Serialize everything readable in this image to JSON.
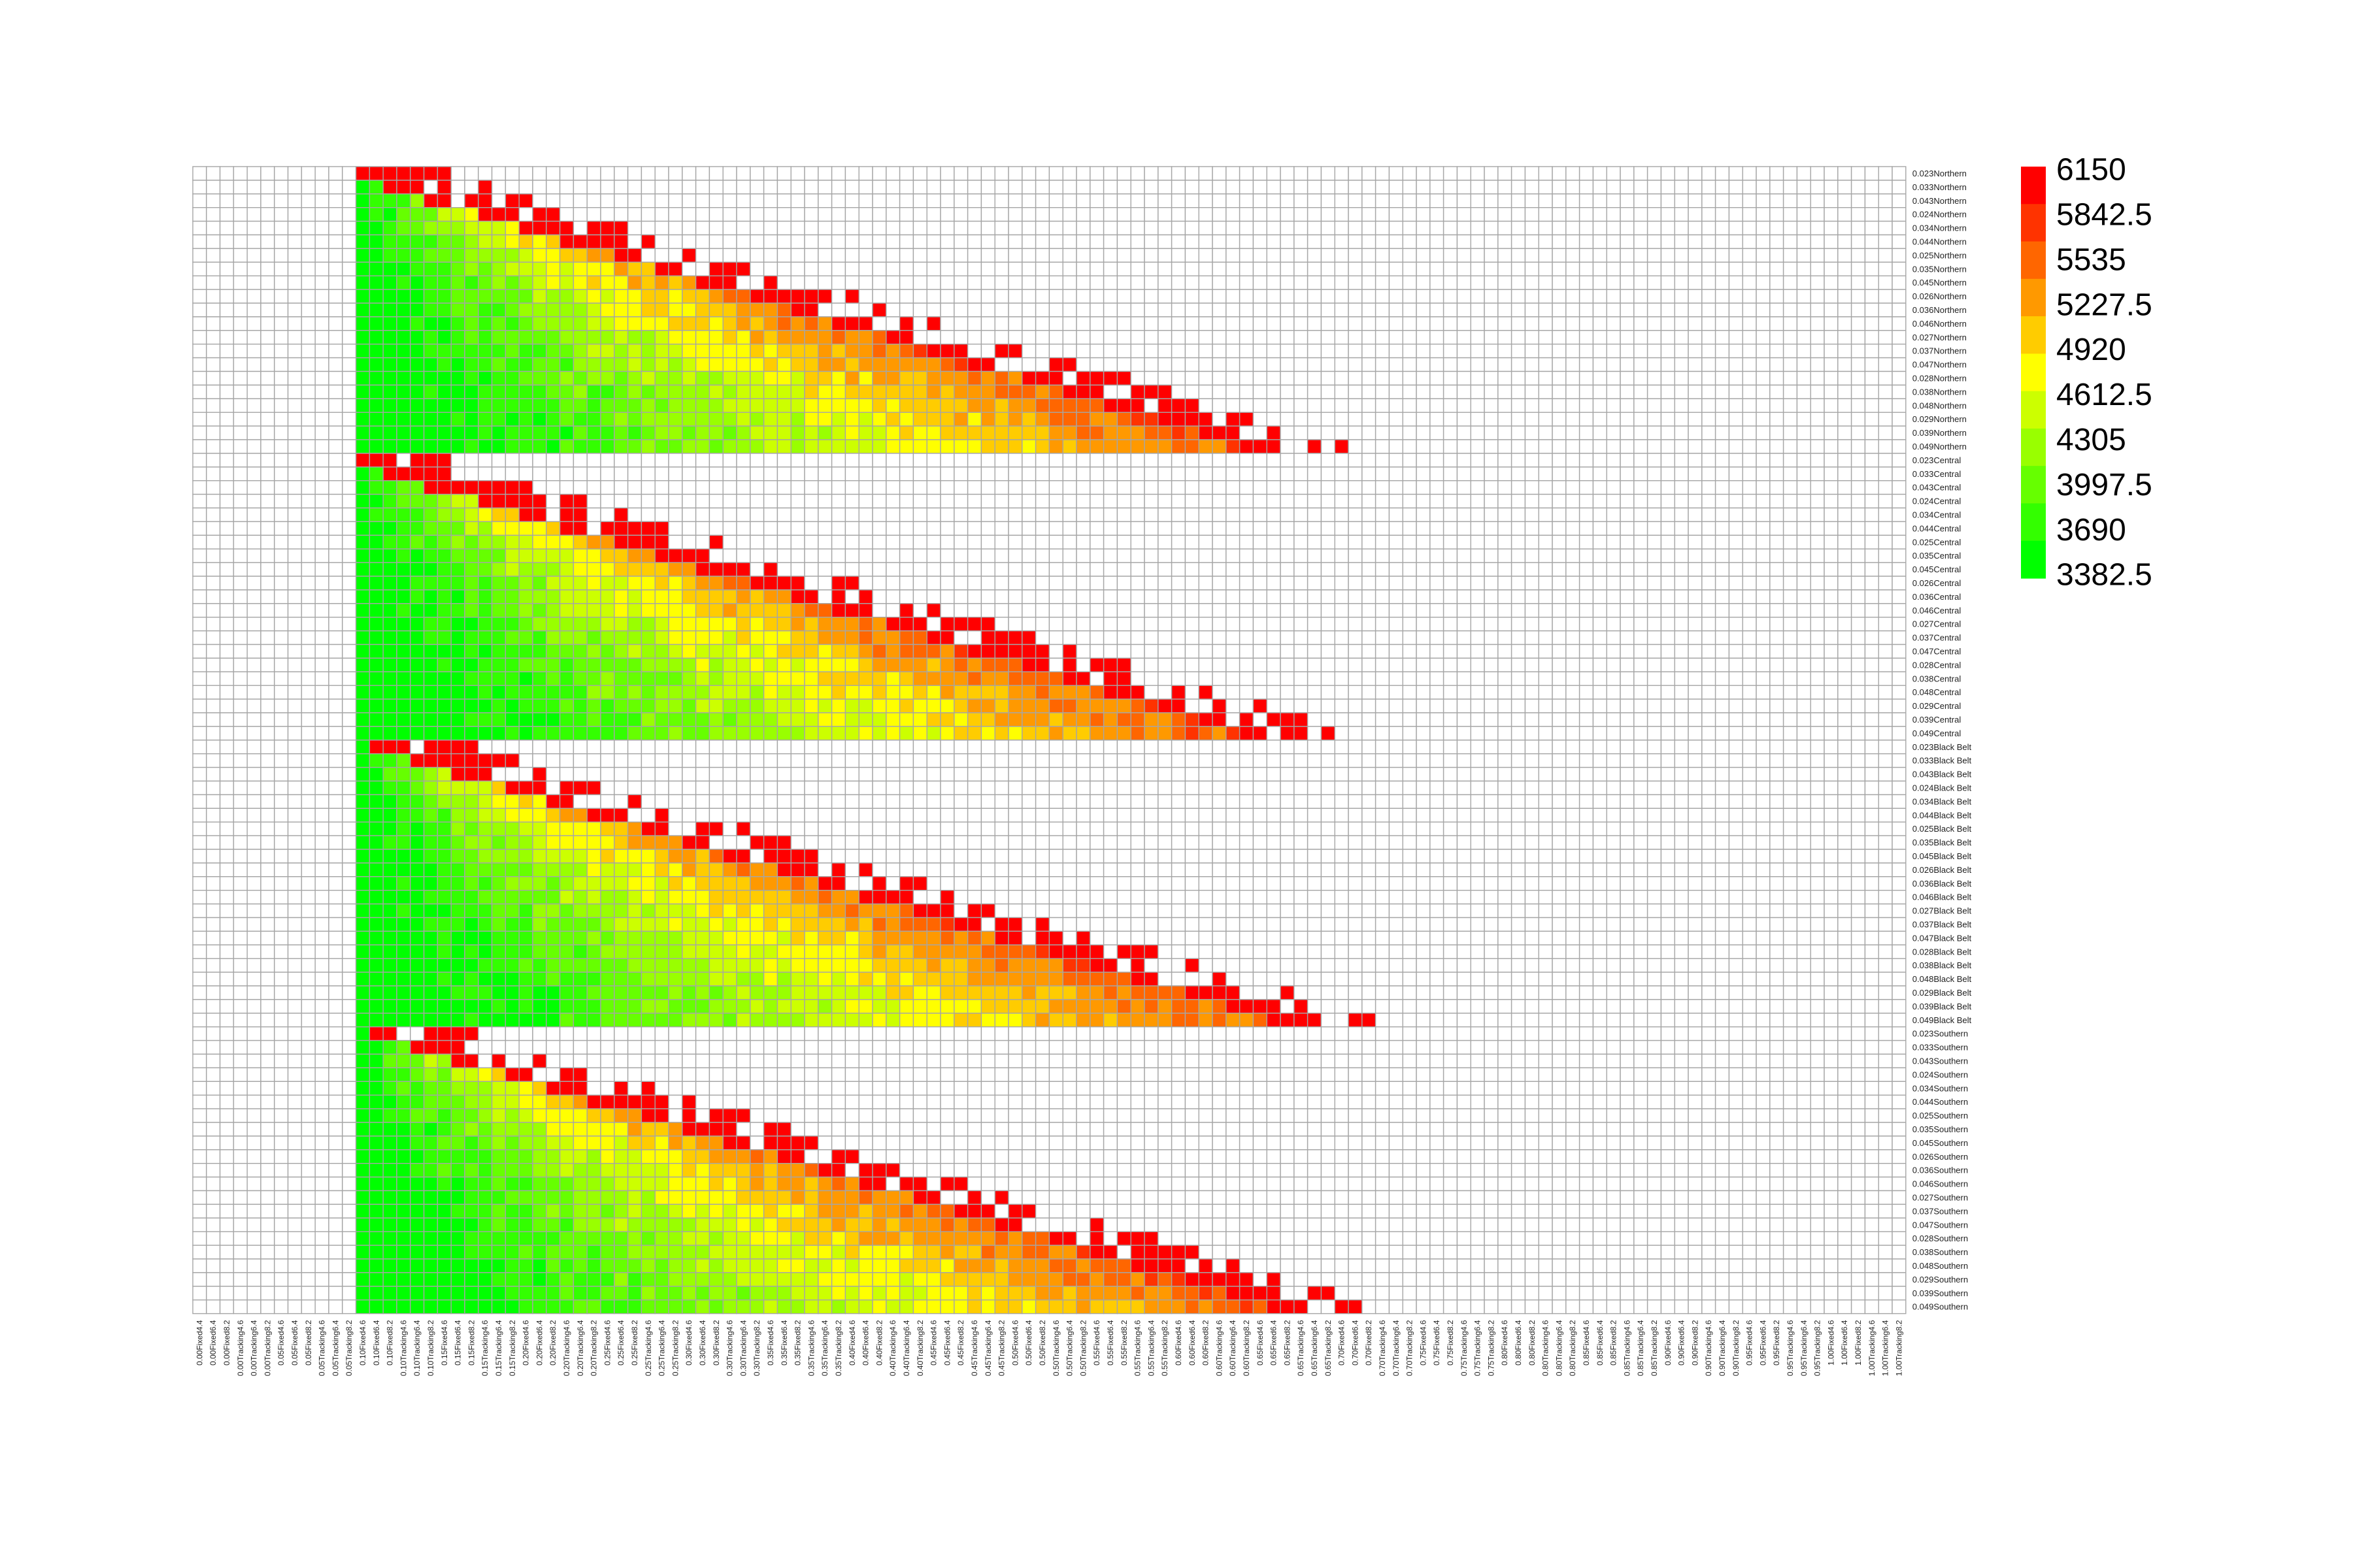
{
  "chart_data": {
    "type": "heatmap",
    "title": "",
    "xlabel": "",
    "ylabel": "",
    "regions": [
      "Northern",
      "Central",
      "Black Belt",
      "Southern"
    ],
    "row_codes": [
      "0.023",
      "0.033",
      "0.043",
      "0.024",
      "0.034",
      "0.044",
      "0.025",
      "0.035",
      "0.045",
      "0.026",
      "0.036",
      "0.046",
      "0.027",
      "0.037",
      "0.047",
      "0.028",
      "0.038",
      "0.048",
      "0.029",
      "0.039",
      "0.049"
    ],
    "rows": [
      "0.023Northern",
      "0.033Northern",
      "0.043Northern",
      "0.024Northern",
      "0.034Northern",
      "0.044Northern",
      "0.025Northern",
      "0.035Northern",
      "0.045Northern",
      "0.026Northern",
      "0.036Northern",
      "0.046Northern",
      "0.027Northern",
      "0.037Northern",
      "0.047Northern",
      "0.028Northern",
      "0.038Northern",
      "0.048Northern",
      "0.029Northern",
      "0.039Northern",
      "0.049Northern",
      "0.023Central",
      "0.033Central",
      "0.043Central",
      "0.024Central",
      "0.034Central",
      "0.044Central",
      "0.025Central",
      "0.035Central",
      "0.045Central",
      "0.026Central",
      "0.036Central",
      "0.046Central",
      "0.027Central",
      "0.037Central",
      "0.047Central",
      "0.028Central",
      "0.038Central",
      "0.048Central",
      "0.029Central",
      "0.039Central",
      "0.049Central",
      "0.023Black Belt",
      "0.033Black Belt",
      "0.043Black Belt",
      "0.024Black Belt",
      "0.034Black Belt",
      "0.044Black Belt",
      "0.025Black Belt",
      "0.035Black Belt",
      "0.045Black Belt",
      "0.026Black Belt",
      "0.036Black Belt",
      "0.046Black Belt",
      "0.027Black Belt",
      "0.037Black Belt",
      "0.047Black Belt",
      "0.028Black Belt",
      "0.038Black Belt",
      "0.048Black Belt",
      "0.029Black Belt",
      "0.039Black Belt",
      "0.049Black Belt",
      "0.023Southern",
      "0.033Southern",
      "0.043Southern",
      "0.024Southern",
      "0.034Southern",
      "0.044Southern",
      "0.025Southern",
      "0.035Southern",
      "0.045Southern",
      "0.026Southern",
      "0.036Southern",
      "0.046Southern",
      "0.027Southern",
      "0.037Southern",
      "0.047Southern",
      "0.028Southern",
      "0.038Southern",
      "0.048Southern",
      "0.029Southern",
      "0.039Southern",
      "0.049Southern"
    ],
    "columns": [
      "0.00Fixed4.4",
      "0.00Fixed6.4",
      "0.00Fixed8.2",
      "0.00Tracking4.6",
      "0.00Tracking6.4",
      "0.00Tracking8.2",
      "0.05Fixed4.6",
      "0.05Fixed6.4",
      "0.05Fixed8.2",
      "0.05Tracking4.6",
      "0.05Tracking6.4",
      "0.05Tracking8.2",
      "0.10Fixed4.6",
      "0.10Fixed6.4",
      "0.10Fixed8.2",
      "0.10Tracking4.6",
      "0.10Tracking6.4",
      "0.10Tracking8.2",
      "0.15Fixed4.6",
      "0.15Fixed6.4",
      "0.15Fixed8.2",
      "0.15Tracking4.6",
      "0.15Tracking6.4",
      "0.15Tracking8.2",
      "0.20Fixed4.6",
      "0.20Fixed6.4",
      "0.20Fixed8.2",
      "0.20Tracking4.6",
      "0.20Tracking6.4",
      "0.20Tracking8.2",
      "0.25Fixed4.6",
      "0.25Fixed6.4",
      "0.25Fixed8.2",
      "0.25Tracking4.6",
      "0.25Tracking6.4",
      "0.25Tracking8.2",
      "0.30Fixed4.6",
      "0.30Fixed6.4",
      "0.30Fixed8.2",
      "0.30Tracking4.6",
      "0.30Tracking6.4",
      "0.30Tracking8.2",
      "0.35Fixed4.6",
      "0.35Fixed6.4",
      "0.35Fixed8.2",
      "0.35Tracking4.6",
      "0.35Tracking6.4",
      "0.35Tracking8.2",
      "0.40Fixed4.6",
      "0.40Fixed6.4",
      "0.40Fixed8.2",
      "0.40Tracking4.6",
      "0.40Tracking6.4",
      "0.40Tracking8.2",
      "0.45Fixed4.6",
      "0.45Fixed6.4",
      "0.45Fixed8.2",
      "0.45Tracking4.6",
      "0.45Tracking6.4",
      "0.45Tracking8.2",
      "0.50Fixed4.6",
      "0.50Fixed6.4",
      "0.50Fixed8.2",
      "0.50Tracking4.6",
      "0.50Tracking6.4",
      "0.50Tracking8.2",
      "0.55Fixed4.6",
      "0.55Fixed6.4",
      "0.55Fixed8.2",
      "0.55Tracking4.6",
      "0.55Tracking6.4",
      "0.55Tracking8.2",
      "0.60Fixed4.6",
      "0.60Fixed6.4",
      "0.60Fixed8.2",
      "0.60Tracking4.6",
      "0.60Tracking6.4",
      "0.60Tracking8.2",
      "0.65Fixed4.6",
      "0.65Fixed6.4",
      "0.65Fixed8.2",
      "0.65Tracking4.6",
      "0.65Tracking6.4",
      "0.65Tracking8.2",
      "0.70Fixed4.6",
      "0.70Fixed6.4",
      "0.70Fixed8.2",
      "0.70Tracking4.6",
      "0.70Tracking6.4",
      "0.70Tracking8.2",
      "0.75Fixed4.6",
      "0.75Fixed6.4",
      "0.75Fixed8.2",
      "0.75Tracking4.6",
      "0.75Tracking6.4",
      "0.75Tracking8.2",
      "0.80Fixed4.6",
      "0.80Fixed6.4",
      "0.80Fixed8.2",
      "0.80Tracking4.6",
      "0.80Tracking6.4",
      "0.80Tracking8.2",
      "0.85Fixed4.6",
      "0.85Fixed6.4",
      "0.85Fixed8.2",
      "0.85Tracking4.6",
      "0.85Tracking6.4",
      "0.85Tracking8.2",
      "0.90Fixed4.6",
      "0.90Fixed6.4",
      "0.90Fixed8.2",
      "0.90Tracking4.6",
      "0.90Tracking6.4",
      "0.90Tracking8.2",
      "0.95Fixed4.6",
      "0.95Fixed6.4",
      "0.95Fixed8.2",
      "0.95Tracking4.6",
      "0.95Tracking6.4",
      "0.95Tracking8.2",
      "1.00Fixed4.6",
      "1.00Fixed6.4",
      "1.00Fixed8.2",
      "1.00Tracking4.6",
      "1.00Tracking6.4",
      "1.00Tracking8.2"
    ],
    "value_range": [
      3382.5,
      6150
    ],
    "first_filled_column": 12,
    "legend": {
      "placement": "right",
      "labels": [
        "6150",
        "5842.5",
        "5535",
        "5227.5",
        "4920",
        "4612.5",
        "4305",
        "3997.5",
        "3690",
        "3382.5"
      ],
      "colors": [
        "#ff0000",
        "#ff3300",
        "#ff6600",
        "#ff9900",
        "#ffcc00",
        "#ffff00",
        "#ccff00",
        "#99ff00",
        "#66ff00",
        "#33ff00",
        "#00ff00"
      ]
    },
    "missing_color": "#ffffff",
    "grid": true
  }
}
